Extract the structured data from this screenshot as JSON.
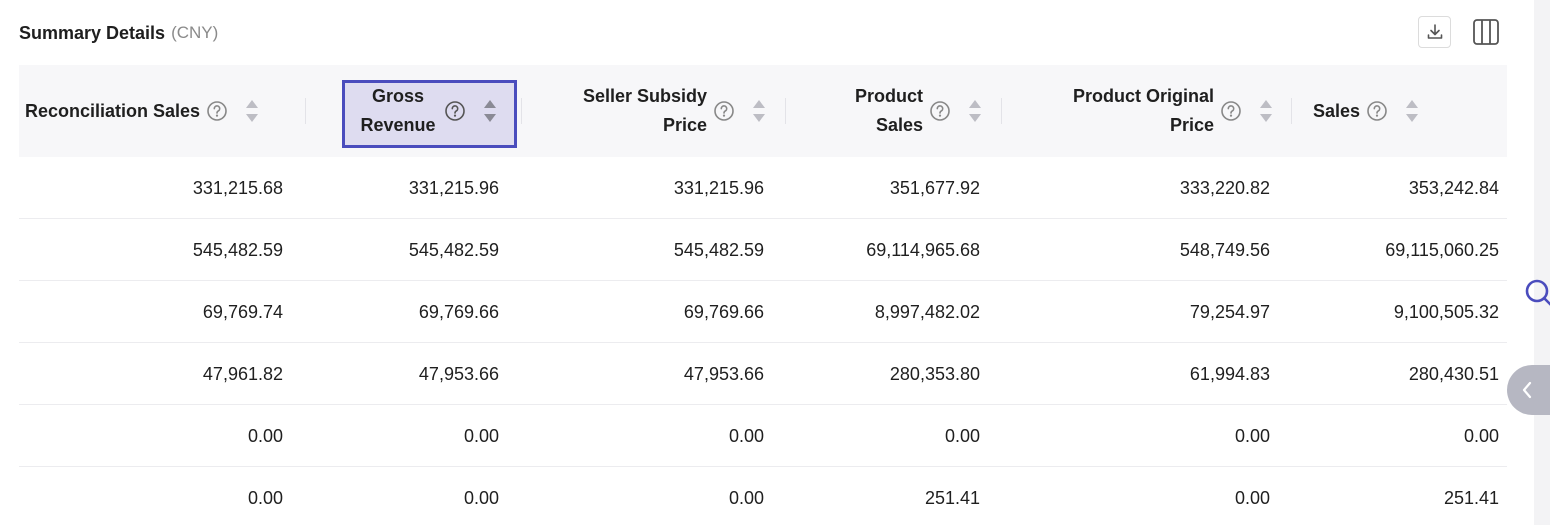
{
  "header": {
    "title": "Summary Details",
    "currency": "(CNY)"
  },
  "toolbar": {
    "download_icon": "download-icon",
    "columns_icon": "columns-icon"
  },
  "side": {
    "search_icon": "search-icon",
    "collapse_icon": "chevron-left-icon"
  },
  "colors": {
    "accent": "#4a4cbd",
    "highlight": "#dedcf0",
    "header_bg": "#f7f7f9",
    "tab_bg": "#b6b7c2"
  },
  "table": {
    "columns": [
      {
        "label": "Reconciliation Sales"
      },
      {
        "label": "Gross Revenue"
      },
      {
        "label": "Seller Subsidy Price"
      },
      {
        "label": "Product Sales"
      },
      {
        "label": "Product Original Price"
      },
      {
        "label": "Sales"
      }
    ],
    "rows": [
      [
        "331,215.68",
        "331,215.96",
        "331,215.96",
        "351,677.92",
        "333,220.82",
        "353,242.84"
      ],
      [
        "545,482.59",
        "545,482.59",
        "545,482.59",
        "69,114,965.68",
        "548,749.56",
        "69,115,060.25"
      ],
      [
        "69,769.74",
        "69,769.66",
        "69,769.66",
        "8,997,482.02",
        "79,254.97",
        "9,100,505.32"
      ],
      [
        "47,961.82",
        "47,953.66",
        "47,953.66",
        "280,353.80",
        "61,994.83",
        "280,430.51"
      ],
      [
        "0.00",
        "0.00",
        "0.00",
        "0.00",
        "0.00",
        "0.00"
      ],
      [
        "0.00",
        "0.00",
        "0.00",
        "251.41",
        "0.00",
        "251.41"
      ]
    ]
  }
}
